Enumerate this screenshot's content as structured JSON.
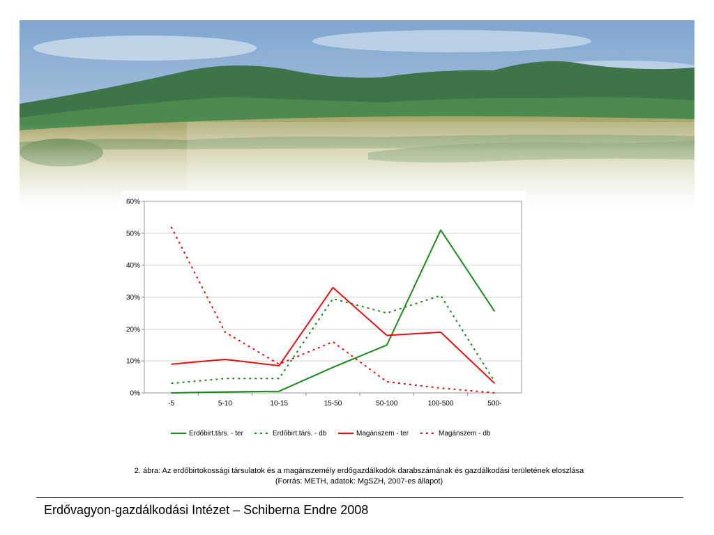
{
  "chart_data": {
    "type": "line",
    "categories": [
      "-5",
      "5-10",
      "10-15",
      "15-50",
      "50-100",
      "100-500",
      "500-"
    ],
    "y_ticks": [
      "0%",
      "10%",
      "20%",
      "30%",
      "40%",
      "50%",
      "60%"
    ],
    "ylim": [
      0,
      60
    ],
    "grid": true,
    "legend_position": "bottom",
    "series": [
      {
        "name": "Erdőbirt.társ. - ter",
        "color": "#1a8a1a",
        "dash": "solid",
        "values": [
          0,
          0.3,
          0.5,
          8,
          15,
          51,
          25.5
        ]
      },
      {
        "name": "Erdőbirt.társ. - db",
        "color": "#1a8a1a",
        "dash": "dashed",
        "values": [
          3,
          4.5,
          4.5,
          29.5,
          25,
          30.5,
          3.5
        ]
      },
      {
        "name": "Magánszem - ter",
        "color": "#e01010",
        "dash": "solid",
        "values": [
          9,
          10.5,
          8.5,
          33,
          18,
          19,
          3
        ]
      },
      {
        "name": "Magánszem - db",
        "color": "#e01010",
        "dash": "dashed",
        "values": [
          52,
          19,
          9,
          16,
          3.5,
          1.5,
          0
        ]
      }
    ]
  },
  "caption": {
    "line1": "2. ábra: Az erdőbirtokossági társulatok és a magánszemély erdőgazdálkodók darabszámának és gazdálkodási területének eloszlása",
    "line2": "(Forrás: METH, adatok: MgSZH, 2007-es állapot)"
  },
  "footer": {
    "text": "Erdővagyon-gazdálkodási Intézet – Schiberna Endre 2008"
  },
  "banner": {
    "sky_color": "#8fb3d6",
    "mountain_color": "#3f7a4a",
    "field_color": "#b9b27a"
  }
}
